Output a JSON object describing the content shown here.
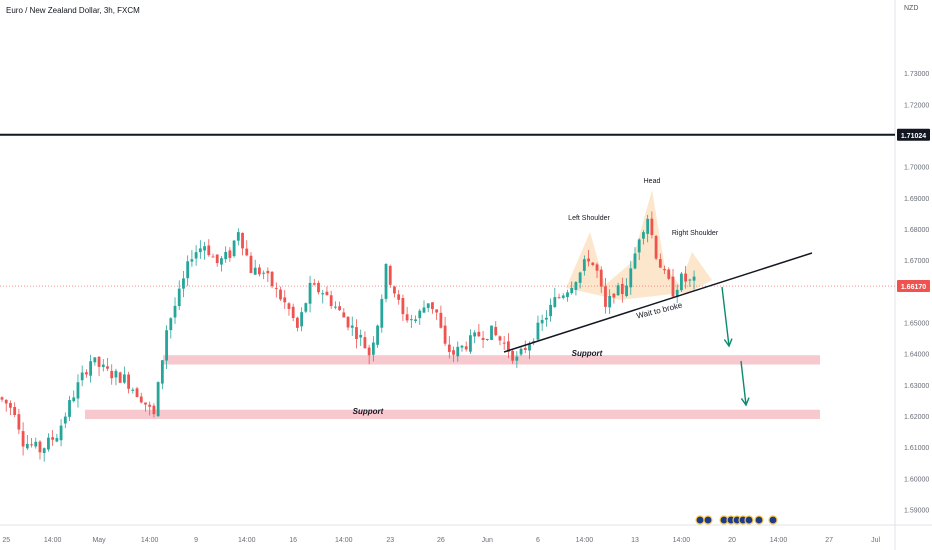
{
  "header": {
    "title": "Euro / New Zealand Dollar, 3h, FXCM",
    "currency": "NZD"
  },
  "chart_data": {
    "type": "candlestick",
    "ylim": [
      1.585,
      1.7535
    ],
    "y_ticks": [
      "1.73000",
      "1.72000",
      "1.71024",
      "1.70000",
      "1.69000",
      "1.68000",
      "1.67000",
      "1.66170",
      "1.65000",
      "1.64000",
      "1.63000",
      "1.62000",
      "1.61000",
      "1.60000",
      "1.59000"
    ],
    "y_tick_values": [
      1.73,
      1.72,
      1.71024,
      1.7,
      1.69,
      1.68,
      1.67,
      1.6617,
      1.65,
      1.64,
      1.63,
      1.62,
      1.61,
      1.6,
      1.59
    ],
    "x_ticks": [
      "25",
      "14:00",
      "May",
      "14:00",
      "9",
      "14:00",
      "16",
      "14:00",
      "23",
      "26",
      "Jun",
      "6",
      "14:00",
      "13",
      "14:00",
      "20",
      "14:00",
      "27",
      "Jul"
    ],
    "x_tick_index": [
      1,
      12,
      23,
      35,
      46,
      58,
      69,
      81,
      92,
      104,
      115,
      127,
      138,
      150,
      161,
      173,
      184,
      196,
      207
    ],
    "price_path": [
      [
        0,
        1.626
      ],
      [
        4,
        1.622
      ],
      [
        6,
        1.612
      ],
      [
        10,
        1.609
      ],
      [
        14,
        1.614
      ],
      [
        18,
        1.627
      ],
      [
        22,
        1.638
      ],
      [
        26,
        1.634
      ],
      [
        30,
        1.632
      ],
      [
        34,
        1.626
      ],
      [
        37,
        1.62
      ],
      [
        40,
        1.648
      ],
      [
        43,
        1.659
      ],
      [
        46,
        1.672
      ],
      [
        49,
        1.675
      ],
      [
        52,
        1.669
      ],
      [
        55,
        1.672
      ],
      [
        57,
        1.68
      ],
      [
        60,
        1.667
      ],
      [
        63,
        1.666
      ],
      [
        66,
        1.66
      ],
      [
        69,
        1.654
      ],
      [
        71,
        1.648
      ],
      [
        74,
        1.661
      ],
      [
        77,
        1.66
      ],
      [
        80,
        1.655
      ],
      [
        83,
        1.65
      ],
      [
        86,
        1.645
      ],
      [
        88,
        1.64
      ],
      [
        90,
        1.65
      ],
      [
        92,
        1.667
      ],
      [
        94,
        1.66
      ],
      [
        96,
        1.652
      ],
      [
        99,
        1.651
      ],
      [
        102,
        1.657
      ],
      [
        104,
        1.653
      ],
      [
        106,
        1.642
      ],
      [
        108,
        1.64
      ],
      [
        111,
        1.643
      ],
      [
        114,
        1.646
      ],
      [
        117,
        1.647
      ],
      [
        120,
        1.643
      ],
      [
        123,
        1.638
      ],
      [
        126,
        1.644
      ],
      [
        129,
        1.65
      ],
      [
        132,
        1.657
      ],
      [
        135,
        1.661
      ],
      [
        138,
        1.666
      ],
      [
        140,
        1.671
      ],
      [
        142,
        1.666
      ],
      [
        144,
        1.654
      ],
      [
        146,
        1.66
      ],
      [
        148,
        1.66
      ],
      [
        150,
        1.666
      ],
      [
        152,
        1.678
      ],
      [
        154,
        1.684
      ],
      [
        156,
        1.672
      ],
      [
        158,
        1.665
      ],
      [
        160,
        1.66
      ],
      [
        162,
        1.664
      ],
      [
        164,
        1.663
      ]
    ],
    "current_price": "1.66170",
    "resistance_level": "1.71024",
    "support_zones": [
      {
        "low": 1.6365,
        "high": 1.6395
      },
      {
        "low": 1.619,
        "high": 1.622
      }
    ],
    "annotations": {
      "head": "Head",
      "left_shoulder": "Left Shoulder",
      "right_shoulder": "Right Shoulder",
      "trendline": "Wait to broke",
      "support_1": "Support",
      "support_2": "Support"
    },
    "colors": {
      "up": "#26a69a",
      "down": "#ef5350",
      "support_zone": "#f8c8cf",
      "pattern_fill": "#fbe3c3",
      "trendline": "#131722",
      "arrow": "#0b8a6e",
      "resistance": "#131722",
      "price_line": "#ef5350"
    }
  }
}
